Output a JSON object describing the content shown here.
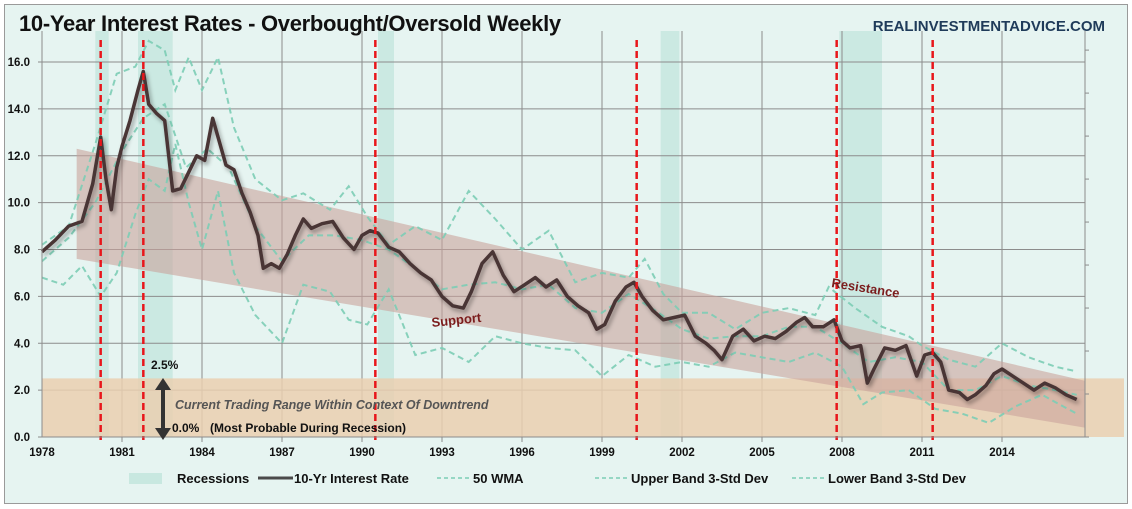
{
  "header": {
    "title": "10-Year Interest Rates - Overbought/Oversold Weekly",
    "brand": "REALINVESTMENTADVICE.COM"
  },
  "colors": {
    "background": "#e6f4f1",
    "rate_line": "#4a3434",
    "bands": "#7ccdb5",
    "recession": "#c8e8e0",
    "channel": "#c9a49c",
    "range_zone": "#eacfb0",
    "red_markers": "#e8161b",
    "annotation_text": "#7b1d1d"
  },
  "annotations": {
    "support": "Support",
    "resistance": "Resistance",
    "range_top": "2.5%",
    "range_bottom": "0.0%",
    "range_note": "(Most Probable During Recession)",
    "range_caption": "Current Trading Range Within Context Of Downtrend"
  },
  "chart_data": {
    "type": "line",
    "title": "10-Year Interest Rates - Overbought/Oversold Weekly",
    "xlabel": "",
    "ylabel": "",
    "xlim": [
      1978,
      2017.1
    ],
    "ylim": [
      0,
      17
    ],
    "grid": true,
    "legend_position": "bottom",
    "x_ticks": [
      "1978",
      "1981",
      "1984",
      "1987",
      "1990",
      "1993",
      "1996",
      "1999",
      "2002",
      "2005",
      "2008",
      "2011",
      "2014"
    ],
    "y_ticks": [
      "0.0",
      "2.0",
      "4.0",
      "6.0",
      "8.0",
      "10.0",
      "12.0",
      "14.0",
      "16.0"
    ],
    "legend": [
      "Recessions",
      "10-Yr Interest Rate",
      "50 WMA",
      "Upper Band 3-Std Dev",
      "Lower Band 3-Std Dev"
    ],
    "recessions": [
      [
        1980.0,
        1980.5
      ],
      [
        1981.6,
        1982.9
      ],
      [
        1990.6,
        1991.2
      ],
      [
        2001.2,
        2001.9
      ],
      [
        2007.9,
        2009.5
      ]
    ],
    "red_markers": [
      1980.2,
      1981.8,
      1990.5,
      2000.3,
      2007.8,
      2011.4
    ],
    "channel": {
      "x": [
        1979.3,
        2017.1
      ],
      "upper": [
        12.3,
        2.4
      ],
      "lower": [
        7.6,
        0.4
      ]
    },
    "range_zone": [
      0.0,
      2.5
    ],
    "series": [
      {
        "name": "10-Yr Interest Rate",
        "x": [
          1978.0,
          1978.5,
          1979.0,
          1979.5,
          1979.9,
          1980.2,
          1980.4,
          1980.6,
          1980.8,
          1981.0,
          1981.3,
          1981.6,
          1981.8,
          1982.0,
          1982.3,
          1982.6,
          1982.9,
          1983.2,
          1983.5,
          1983.8,
          1984.1,
          1984.4,
          1984.6,
          1984.9,
          1985.2,
          1985.5,
          1985.8,
          1986.1,
          1986.3,
          1986.6,
          1986.9,
          1987.2,
          1987.5,
          1987.8,
          1988.1,
          1988.5,
          1988.9,
          1989.3,
          1989.7,
          1990.0,
          1990.3,
          1990.6,
          1991.0,
          1991.4,
          1991.8,
          1992.2,
          1992.6,
          1993.0,
          1993.4,
          1993.8,
          1994.1,
          1994.5,
          1994.9,
          1995.3,
          1995.7,
          1996.1,
          1996.5,
          1996.9,
          1997.3,
          1997.7,
          1998.1,
          1998.5,
          1998.8,
          1999.1,
          1999.5,
          1999.9,
          2000.2,
          2000.5,
          2000.9,
          2001.3,
          2001.7,
          2002.1,
          2002.5,
          2002.9,
          2003.2,
          2003.5,
          2003.9,
          2004.3,
          2004.7,
          2005.1,
          2005.5,
          2005.9,
          2006.3,
          2006.6,
          2006.9,
          2007.3,
          2007.7,
          2008.0,
          2008.3,
          2008.7,
          2008.95,
          2009.2,
          2009.6,
          2010.0,
          2010.4,
          2010.8,
          2011.1,
          2011.4,
          2011.7,
          2012.0,
          2012.4,
          2012.7,
          2013.0,
          2013.4,
          2013.7,
          2014.0,
          2014.4,
          2014.8,
          2015.2,
          2015.6,
          2016.0,
          2016.4,
          2016.8
        ],
        "y": [
          7.9,
          8.4,
          9.0,
          9.2,
          10.8,
          12.8,
          11.0,
          9.7,
          11.5,
          12.4,
          13.5,
          14.8,
          15.6,
          14.2,
          13.8,
          13.5,
          10.5,
          10.6,
          11.3,
          12.0,
          11.8,
          13.6,
          12.8,
          11.6,
          11.4,
          10.4,
          9.6,
          8.6,
          7.2,
          7.4,
          7.2,
          7.8,
          8.6,
          9.3,
          8.9,
          9.1,
          9.2,
          8.5,
          8.0,
          8.6,
          8.8,
          8.7,
          8.1,
          7.9,
          7.4,
          7.0,
          6.7,
          6.0,
          5.6,
          5.5,
          6.2,
          7.4,
          7.9,
          6.9,
          6.2,
          6.5,
          6.8,
          6.4,
          6.7,
          6.0,
          5.6,
          5.3,
          4.6,
          4.8,
          5.8,
          6.4,
          6.6,
          6.0,
          5.4,
          5.0,
          5.1,
          5.2,
          4.3,
          4.0,
          3.7,
          3.3,
          4.3,
          4.6,
          4.1,
          4.3,
          4.2,
          4.5,
          4.9,
          5.1,
          4.7,
          4.7,
          5.0,
          4.1,
          3.8,
          3.9,
          2.3,
          2.9,
          3.8,
          3.7,
          3.9,
          2.6,
          3.5,
          3.6,
          3.2,
          2.0,
          1.9,
          1.6,
          1.8,
          2.2,
          2.7,
          2.9,
          2.6,
          2.3,
          2.0,
          2.3,
          2.1,
          1.8,
          1.6
        ]
      },
      {
        "name": "50 WMA",
        "x": [
          1978.0,
          1979.0,
          1980.0,
          1981.0,
          1981.8,
          1982.6,
          1983.4,
          1984.2,
          1985.0,
          1986.0,
          1987.0,
          1988.0,
          1989.0,
          1990.0,
          1991.0,
          1992.0,
          1993.0,
          1994.0,
          1995.0,
          1996.0,
          1997.0,
          1998.0,
          1999.0,
          2000.0,
          2001.0,
          2002.0,
          2003.0,
          2004.0,
          2005.0,
          2006.0,
          2007.0,
          2008.0,
          2009.0,
          2010.0,
          2011.0,
          2012.0,
          2013.0,
          2014.0,
          2015.0,
          2016.0,
          2016.8
        ],
        "y": [
          7.5,
          8.5,
          10.0,
          12.2,
          13.6,
          14.2,
          11.5,
          12.3,
          11.5,
          9.0,
          7.5,
          8.6,
          8.6,
          8.4,
          8.0,
          7.2,
          6.3,
          6.5,
          6.6,
          6.3,
          6.5,
          5.5,
          5.3,
          6.1,
          5.4,
          4.6,
          4.2,
          4.3,
          4.3,
          4.7,
          4.7,
          4.0,
          3.2,
          3.4,
          3.2,
          2.0,
          2.0,
          2.6,
          2.2,
          2.0,
          1.8
        ]
      },
      {
        "name": "Upper Band 3-Std Dev",
        "x": [
          1978.0,
          1979.0,
          1980.0,
          1980.8,
          1981.5,
          1982.0,
          1982.6,
          1983.0,
          1983.5,
          1984.0,
          1984.6,
          1985.2,
          1986.0,
          1987.0,
          1987.8,
          1988.8,
          1989.5,
          1990.2,
          1991.0,
          1992.0,
          1993.0,
          1994.0,
          1995.0,
          1996.0,
          1997.0,
          1998.0,
          1999.0,
          2000.0,
          2000.6,
          2001.3,
          2002.0,
          2003.0,
          2004.0,
          2005.0,
          2006.0,
          2007.0,
          2007.5,
          2008.5,
          2009.5,
          2010.5,
          2011.0,
          2012.0,
          2013.0,
          2014.0,
          2015.0,
          2016.0,
          2016.8
        ],
        "y": [
          8.2,
          9.0,
          12.5,
          15.5,
          15.8,
          16.9,
          16.5,
          14.8,
          16.2,
          14.8,
          16.2,
          13.2,
          11.0,
          10.1,
          10.4,
          9.7,
          10.7,
          9.4,
          8.2,
          9.0,
          8.4,
          10.5,
          9.3,
          8.0,
          8.8,
          6.6,
          7.0,
          6.8,
          7.6,
          6.1,
          5.3,
          5.3,
          4.6,
          5.3,
          5.5,
          5.2,
          6.4,
          5.5,
          4.7,
          4.3,
          3.9,
          3.3,
          3.0,
          4.0,
          3.4,
          3.0,
          2.8
        ]
      },
      {
        "name": "Lower Band 3-Std Dev",
        "x": [
          1978.0,
          1978.8,
          1979.5,
          1980.2,
          1980.8,
          1981.5,
          1982.0,
          1982.6,
          1983.0,
          1983.5,
          1984.0,
          1984.6,
          1985.2,
          1986.0,
          1987.0,
          1987.8,
          1988.8,
          1989.5,
          1990.2,
          1991.0,
          1992.0,
          1993.0,
          1994.0,
          1995.0,
          1996.0,
          1997.0,
          1998.0,
          1999.0,
          2000.0,
          2001.0,
          2002.0,
          2003.0,
          2004.0,
          2005.0,
          2006.0,
          2007.0,
          2008.0,
          2008.8,
          2009.5,
          2010.5,
          2011.5,
          2012.5,
          2013.5,
          2014.5,
          2015.5,
          2016.3,
          2016.8
        ],
        "y": [
          6.8,
          6.5,
          7.3,
          6.0,
          7.0,
          9.5,
          11.0,
          10.5,
          12.5,
          10.0,
          8.0,
          10.5,
          7.0,
          5.2,
          4.0,
          6.5,
          6.2,
          5.0,
          4.8,
          6.3,
          3.5,
          3.8,
          3.2,
          4.3,
          4.0,
          3.8,
          3.7,
          2.6,
          3.5,
          3.0,
          3.2,
          3.0,
          3.6,
          3.4,
          3.2,
          3.6,
          3.0,
          1.4,
          1.9,
          2.0,
          1.2,
          1.0,
          0.6,
          1.3,
          1.8,
          1.3,
          1.0
        ]
      }
    ]
  }
}
